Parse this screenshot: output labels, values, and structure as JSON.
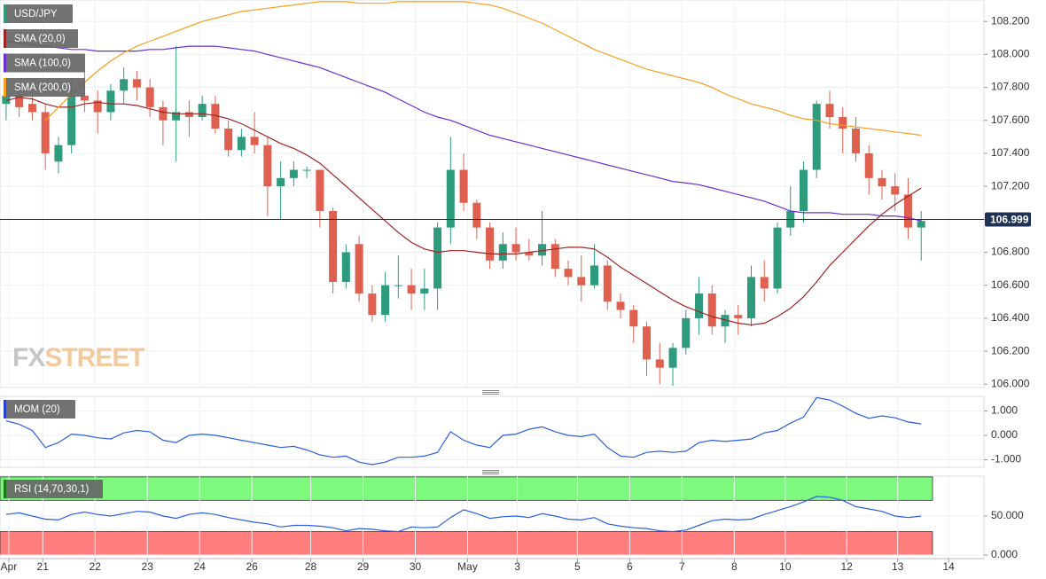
{
  "chart_data": [
    {
      "type": "candlestick",
      "instrument": "USD/JPY",
      "instrument_color": "#2e9c7c",
      "up_color": "#2e9c7c",
      "down_color": "#e0604f",
      "xlim": [
        -0.47,
        74.8
      ],
      "xticks": [
        {
          "value": 0.2,
          "label": "Apr"
        },
        {
          "value": 2.8,
          "label": "21"
        },
        {
          "value": 6.8,
          "label": "22"
        },
        {
          "value": 10.8,
          "label": "23"
        },
        {
          "value": 14.8,
          "label": "24"
        },
        {
          "value": 18.8,
          "label": "26"
        },
        {
          "value": 23.3,
          "label": "28"
        },
        {
          "value": 27.3,
          "label": "29"
        },
        {
          "value": 31.3,
          "label": "30"
        },
        {
          "value": 35.3,
          "label": "May"
        },
        {
          "value": 39.1,
          "label": "3"
        },
        {
          "value": 43.7,
          "label": "5"
        },
        {
          "value": 47.7,
          "label": "6"
        },
        {
          "value": 51.7,
          "label": "7"
        },
        {
          "value": 55.7,
          "label": "8"
        },
        {
          "value": 59.6,
          "label": "10"
        },
        {
          "value": 64.3,
          "label": "12"
        },
        {
          "value": 68.2,
          "label": "13"
        },
        {
          "value": 72.1,
          "label": "14"
        }
      ],
      "ylim": [
        105.98,
        108.33
      ],
      "yticks": [
        {
          "value": 106.0,
          "label": "106.000"
        },
        {
          "value": 106.2,
          "label": "106.200"
        },
        {
          "value": 106.4,
          "label": "106.400"
        },
        {
          "value": 106.6,
          "label": "106.600"
        },
        {
          "value": 106.8,
          "label": "106.800"
        },
        {
          "value": 107.0,
          "label": "107.000"
        },
        {
          "value": 107.2,
          "label": "107.200"
        },
        {
          "value": 107.4,
          "label": "107.400"
        },
        {
          "value": 107.6,
          "label": "107.600"
        },
        {
          "value": 107.8,
          "label": "107.800"
        },
        {
          "value": 108.0,
          "label": "108.000"
        },
        {
          "value": 108.2,
          "label": "108.200"
        }
      ],
      "grid": true,
      "last_price": {
        "value": 106.999,
        "label": "106.999",
        "color": "#1f3254"
      },
      "watermark": {
        "first": "FX",
        "second": "STREET"
      },
      "open": [
        107.7,
        107.75,
        107.7,
        107.65,
        107.35,
        107.45,
        107.75,
        107.72,
        107.65,
        107.78,
        107.85,
        107.8,
        107.68,
        107.6,
        107.65,
        107.62,
        107.7,
        107.55,
        107.42,
        107.5,
        107.45,
        107.2,
        107.25,
        107.3,
        107.3,
        107.05,
        106.62,
        106.85,
        106.55,
        106.42,
        106.6,
        106.6,
        106.55,
        106.58,
        106.95,
        107.3,
        107.1,
        106.95,
        106.75,
        106.85,
        106.8,
        106.78,
        106.85,
        106.7,
        106.65,
        106.6,
        106.72,
        106.5,
        106.45,
        106.35,
        106.15,
        106.1,
        106.22,
        106.4,
        106.55,
        106.35,
        106.42,
        106.4,
        106.65,
        106.58,
        106.95,
        107.05,
        107.3,
        107.7,
        107.62,
        107.55,
        107.4,
        107.25,
        107.2,
        107.15,
        106.95
      ],
      "high": [
        107.85,
        107.82,
        107.78,
        107.7,
        107.5,
        107.85,
        107.9,
        107.78,
        107.82,
        107.92,
        107.9,
        107.85,
        107.72,
        108.05,
        107.72,
        107.75,
        107.75,
        107.6,
        107.55,
        107.65,
        107.5,
        107.35,
        107.35,
        107.32,
        107.3,
        107.07,
        106.85,
        106.9,
        106.6,
        106.68,
        106.78,
        106.7,
        106.7,
        106.98,
        107.5,
        107.4,
        107.12,
        106.98,
        106.92,
        106.95,
        106.88,
        107.05,
        106.88,
        106.75,
        106.78,
        106.85,
        106.75,
        106.55,
        106.48,
        106.38,
        106.25,
        106.25,
        106.45,
        106.65,
        106.6,
        106.45,
        106.48,
        106.72,
        106.75,
        106.98,
        107.2,
        107.35,
        107.72,
        107.78,
        107.68,
        107.62,
        107.45,
        107.3,
        107.28,
        107.25,
        107.05
      ],
      "low": [
        107.6,
        107.62,
        107.6,
        107.3,
        107.28,
        107.4,
        107.65,
        107.52,
        107.6,
        107.7,
        107.72,
        107.62,
        107.45,
        107.35,
        107.5,
        107.6,
        107.52,
        107.38,
        107.38,
        107.4,
        107.02,
        107.0,
        107.2,
        107.25,
        106.95,
        106.55,
        106.58,
        106.5,
        106.38,
        106.38,
        106.52,
        106.45,
        106.45,
        106.45,
        106.85,
        107.05,
        106.88,
        106.7,
        106.7,
        106.75,
        106.75,
        106.72,
        106.65,
        106.6,
        106.5,
        106.58,
        106.45,
        106.4,
        106.25,
        106.05,
        106.0,
        105.99,
        106.18,
        106.3,
        106.3,
        106.25,
        106.3,
        106.35,
        106.5,
        106.55,
        106.9,
        106.98,
        107.25,
        107.55,
        107.4,
        107.35,
        107.15,
        107.12,
        107.05,
        106.88,
        106.75
      ],
      "close": [
        107.75,
        107.68,
        107.65,
        107.4,
        107.45,
        107.75,
        107.72,
        107.65,
        107.78,
        107.85,
        107.8,
        107.68,
        107.6,
        107.65,
        107.62,
        107.7,
        107.55,
        107.42,
        107.5,
        107.45,
        107.2,
        107.25,
        107.3,
        107.3,
        107.05,
        106.62,
        106.8,
        106.55,
        106.42,
        106.6,
        106.6,
        106.55,
        106.58,
        106.95,
        107.3,
        107.1,
        106.95,
        106.75,
        106.85,
        106.8,
        106.78,
        106.85,
        106.7,
        106.65,
        106.6,
        106.72,
        106.5,
        106.45,
        106.35,
        106.15,
        106.1,
        106.22,
        106.4,
        106.55,
        106.35,
        106.42,
        106.4,
        106.65,
        106.58,
        106.95,
        107.05,
        107.3,
        107.7,
        107.62,
        107.55,
        107.4,
        107.25,
        107.2,
        107.15,
        106.95,
        106.99
      ],
      "series": [
        {
          "name": "SMA (20,0)",
          "color": "#a02222",
          "values": [
            107.72,
            107.74,
            107.73,
            107.7,
            107.68,
            107.68,
            107.7,
            107.71,
            107.7,
            107.7,
            107.69,
            107.67,
            107.65,
            107.64,
            107.64,
            107.64,
            107.63,
            107.61,
            107.58,
            107.54,
            107.5,
            107.46,
            107.43,
            107.39,
            107.34,
            107.27,
            107.2,
            107.13,
            107.06,
            106.99,
            106.92,
            106.86,
            106.82,
            106.8,
            106.81,
            106.81,
            106.8,
            106.79,
            106.79,
            106.79,
            106.8,
            106.81,
            106.82,
            106.83,
            106.83,
            106.82,
            106.77,
            106.71,
            106.66,
            106.61,
            106.56,
            106.51,
            106.47,
            106.44,
            106.41,
            106.39,
            106.37,
            106.36,
            106.37,
            106.41,
            106.46,
            106.53,
            106.62,
            106.72,
            106.8,
            106.88,
            106.96,
            107.03,
            107.09,
            107.14,
            107.19
          ]
        },
        {
          "name": "SMA (100,0)",
          "color": "#6a2fd0",
          "values": [
            108.08,
            108.07,
            108.06,
            108.05,
            108.04,
            108.03,
            108.03,
            108.02,
            108.02,
            108.02,
            108.02,
            108.03,
            108.03,
            108.04,
            108.05,
            108.05,
            108.05,
            108.04,
            108.03,
            108.02,
            108.0,
            107.98,
            107.96,
            107.94,
            107.92,
            107.89,
            107.86,
            107.83,
            107.8,
            107.77,
            107.73,
            107.69,
            107.65,
            107.62,
            107.6,
            107.57,
            107.54,
            107.51,
            107.49,
            107.47,
            107.45,
            107.43,
            107.41,
            107.39,
            107.37,
            107.35,
            107.33,
            107.31,
            107.29,
            107.27,
            107.25,
            107.23,
            107.22,
            107.21,
            107.19,
            107.17,
            107.15,
            107.13,
            107.11,
            107.08,
            107.05,
            107.04,
            107.04,
            107.04,
            107.03,
            107.03,
            107.03,
            107.02,
            107.02,
            107.01,
            106.99
          ]
        },
        {
          "name": "SMA (200,0)",
          "color": "#f5a020",
          "values": [
            null,
            null,
            null,
            107.6,
            107.68,
            107.76,
            107.83,
            107.9,
            107.96,
            108.01,
            108.05,
            108.08,
            108.11,
            108.14,
            108.17,
            108.2,
            108.22,
            108.24,
            108.26,
            108.27,
            108.28,
            108.29,
            108.3,
            108.31,
            108.32,
            108.32,
            108.32,
            108.31,
            108.31,
            108.31,
            108.32,
            108.32,
            108.32,
            108.32,
            108.32,
            108.32,
            108.31,
            108.3,
            108.28,
            108.25,
            108.22,
            108.19,
            108.15,
            108.11,
            108.07,
            108.03,
            108.0,
            107.97,
            107.94,
            107.91,
            107.89,
            107.87,
            107.85,
            107.83,
            107.8,
            107.76,
            107.73,
            107.7,
            107.68,
            107.66,
            107.63,
            107.61,
            107.6,
            107.58,
            107.57,
            107.56,
            107.55,
            107.54,
            107.53,
            107.52,
            107.51
          ]
        }
      ]
    },
    {
      "type": "line",
      "title": "MOM (20)",
      "title_color": "#2244cc",
      "ylim": [
        -1.31,
        1.6
      ],
      "yticks": [
        {
          "value": 1,
          "label": "1.000"
        },
        {
          "value": 0,
          "label": "0.000"
        },
        {
          "value": -1,
          "label": "-1.000"
        }
      ],
      "series": [
        {
          "color": "#2b5fe0",
          "values": [
            0.6,
            0.45,
            0.2,
            -0.5,
            -0.3,
            0.05,
            0.0,
            -0.1,
            -0.15,
            0.1,
            0.2,
            0.15,
            -0.2,
            -0.3,
            0.0,
            0.05,
            0.0,
            -0.1,
            -0.2,
            -0.3,
            -0.4,
            -0.5,
            -0.45,
            -0.6,
            -0.8,
            -0.9,
            -0.85,
            -1.1,
            -1.2,
            -1.1,
            -0.9,
            -0.9,
            -0.85,
            -0.7,
            0.15,
            -0.2,
            -0.4,
            -0.5,
            0.0,
            0.05,
            0.25,
            0.35,
            0.15,
            0.0,
            -0.05,
            0.05,
            -0.5,
            -0.85,
            -0.9,
            -0.7,
            -0.65,
            -0.7,
            -0.65,
            -0.3,
            -0.2,
            -0.25,
            -0.2,
            -0.15,
            0.1,
            0.2,
            0.5,
            0.75,
            1.55,
            1.45,
            1.2,
            0.9,
            0.7,
            0.8,
            0.72,
            0.55,
            0.47
          ]
        }
      ]
    },
    {
      "type": "line",
      "title": "RSI (14,70,30,1)",
      "title_color": "#1a7a1a",
      "ylim": [
        -4.5,
        101
      ],
      "yticks": [
        {
          "value": 50,
          "label": "50.000"
        },
        {
          "value": 0,
          "label": "0.000"
        }
      ],
      "zones": [
        {
          "from": 70,
          "to": 100,
          "color": "#7dfa7d"
        },
        {
          "from": 0,
          "to": 30,
          "color": "#ff7d7d"
        }
      ],
      "series": [
        {
          "color": "#2b5fe0",
          "values": [
            52,
            54,
            50,
            46,
            45,
            52,
            55,
            52,
            50,
            53,
            56,
            55,
            50,
            47,
            52,
            54,
            52,
            48,
            45,
            42,
            40,
            36,
            38,
            38,
            37,
            35,
            31,
            34,
            33,
            31,
            30,
            36,
            35,
            36,
            48,
            58,
            53,
            47,
            49,
            50,
            48,
            53,
            50,
            46,
            45,
            48,
            40,
            37,
            35,
            34,
            31,
            30,
            32,
            38,
            44,
            46,
            45,
            46,
            52,
            57,
            62,
            68,
            75,
            74,
            70,
            62,
            59,
            56,
            50,
            48,
            50
          ]
        }
      ]
    }
  ]
}
